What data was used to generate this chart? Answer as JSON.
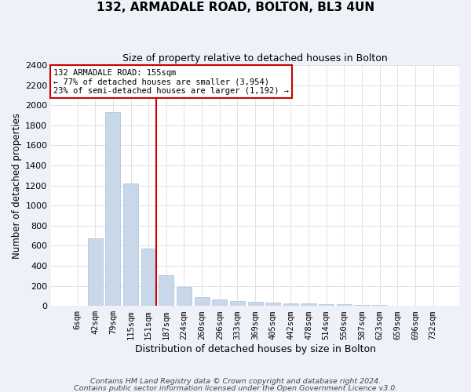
{
  "title1": "132, ARMADALE ROAD, BOLTON, BL3 4UN",
  "title2": "Size of property relative to detached houses in Bolton",
  "xlabel": "Distribution of detached houses by size in Bolton",
  "ylabel": "Number of detached properties",
  "categories": [
    "6sqm",
    "42sqm",
    "79sqm",
    "115sqm",
    "151sqm",
    "187sqm",
    "224sqm",
    "260sqm",
    "296sqm",
    "333sqm",
    "369sqm",
    "405sqm",
    "442sqm",
    "478sqm",
    "514sqm",
    "550sqm",
    "587sqm",
    "623sqm",
    "659sqm",
    "696sqm",
    "732sqm"
  ],
  "values": [
    5,
    670,
    1930,
    1220,
    575,
    305,
    190,
    90,
    65,
    50,
    40,
    35,
    28,
    22,
    18,
    14,
    10,
    8,
    5,
    4,
    3
  ],
  "bar_color": "#c8d8ea",
  "bar_edge_color": "#a8c0d5",
  "vline_color": "#cc0000",
  "vline_pos": 4.42,
  "annotation_title": "132 ARMADALE ROAD: 155sqm",
  "annotation_line1": "← 77% of detached houses are smaller (3,954)",
  "annotation_line2": "23% of semi-detached houses are larger (1,192) →",
  "annotation_box_edgecolor": "#cc0000",
  "ylim_max": 2400,
  "ytick_step": 200,
  "footer1": "Contains HM Land Registry data © Crown copyright and database right 2024.",
  "footer2": "Contains public sector information licensed under the Open Government Licence v3.0.",
  "fig_bg": "#eef2f8",
  "plot_bg": "#ffffff",
  "grid_color": "#d0d8e0"
}
